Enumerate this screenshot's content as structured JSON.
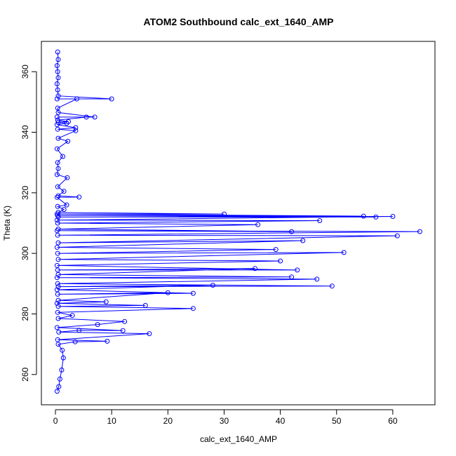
{
  "chart_data": {
    "type": "scatter",
    "title": "ATOM2 Southbound calc_ext_1640_AMP",
    "xlabel": "calc_ext_1640_AMP",
    "ylabel": "Theta (K)",
    "xlim": [
      -2.5,
      67.5
    ],
    "ylim": [
      250,
      370
    ],
    "xticks": [
      0,
      10,
      20,
      30,
      40,
      50,
      60
    ],
    "yticks": [
      260,
      280,
      300,
      320,
      340,
      360
    ],
    "grid": false,
    "legend": "none",
    "mode": "lines+markers",
    "colors": {
      "series": "#0000ff"
    },
    "series": [
      {
        "points": [
          [
            0.3,
            254.5
          ],
          [
            0.6,
            256
          ],
          [
            0.8,
            258.5
          ],
          [
            1.1,
            261.5
          ],
          [
            1.4,
            265.5
          ],
          [
            1.2,
            268
          ],
          [
            0.5,
            270
          ],
          [
            3.5,
            270.8
          ],
          [
            9.2,
            271
          ],
          [
            0.4,
            271.5
          ],
          [
            16.7,
            273.5
          ],
          [
            0.6,
            274
          ],
          [
            4.2,
            274.6
          ],
          [
            12,
            274.5
          ],
          [
            0.3,
            275.5
          ],
          [
            7.5,
            276.5
          ],
          [
            12.3,
            277.5
          ],
          [
            0.5,
            278.5
          ],
          [
            3,
            279.5
          ],
          [
            0.4,
            280.5
          ],
          [
            24.5,
            281.8
          ],
          [
            0.5,
            282.5
          ],
          [
            16,
            282.8
          ],
          [
            0.3,
            283.5
          ],
          [
            9,
            284
          ],
          [
            0.5,
            284.5
          ],
          [
            20,
            287
          ],
          [
            0.4,
            286.5
          ],
          [
            24.5,
            286.8
          ],
          [
            0.3,
            288
          ],
          [
            28,
            289.5
          ],
          [
            0.5,
            289
          ],
          [
            49.2,
            289.2
          ],
          [
            0.4,
            290
          ],
          [
            46.5,
            291.5
          ],
          [
            0.3,
            292
          ],
          [
            42,
            292.2
          ],
          [
            0.5,
            293
          ],
          [
            35.5,
            295
          ],
          [
            0.4,
            294.5
          ],
          [
            43,
            294.5
          ],
          [
            0.3,
            296
          ],
          [
            40,
            297.5
          ],
          [
            0.5,
            298
          ],
          [
            51.3,
            300.3
          ],
          [
            0.4,
            300
          ],
          [
            39.2,
            301.3
          ],
          [
            0.3,
            302
          ],
          [
            44,
            304.2
          ],
          [
            0.5,
            303.5
          ],
          [
            60.8,
            305.8
          ],
          [
            0.4,
            306
          ],
          [
            64.8,
            307.2
          ],
          [
            0.3,
            307.5
          ],
          [
            42,
            307.2
          ],
          [
            0.5,
            308
          ],
          [
            36,
            309.5
          ],
          [
            0.4,
            310
          ],
          [
            47,
            310.8
          ],
          [
            0.3,
            311
          ],
          [
            60,
            312.2
          ],
          [
            0.5,
            312
          ],
          [
            57,
            312
          ],
          [
            0.4,
            312.5
          ],
          [
            54.8,
            312.3
          ],
          [
            0.3,
            313
          ],
          [
            30,
            313
          ],
          [
            0.5,
            313.5
          ],
          [
            1.5,
            314.5
          ],
          [
            0.4,
            315.5
          ],
          [
            2,
            316
          ],
          [
            0.3,
            318.5
          ],
          [
            4.2,
            318.6
          ],
          [
            0.5,
            319
          ],
          [
            1.5,
            320.5
          ],
          [
            0.4,
            322
          ],
          [
            2.1,
            325
          ],
          [
            0.3,
            326
          ],
          [
            0.5,
            328
          ],
          [
            0.4,
            330
          ],
          [
            1.3,
            332
          ],
          [
            0.3,
            334.5
          ],
          [
            2.2,
            337
          ],
          [
            0.5,
            338
          ],
          [
            3.6,
            340.5
          ],
          [
            0.4,
            341
          ],
          [
            3.6,
            341.5
          ],
          [
            0.3,
            342.5
          ],
          [
            2,
            343
          ],
          [
            0.5,
            343.3
          ],
          [
            2.3,
            343.5
          ],
          [
            0.4,
            344
          ],
          [
            5.5,
            345
          ],
          [
            0.3,
            345
          ],
          [
            7,
            345
          ],
          [
            0.5,
            346.5
          ],
          [
            0.4,
            348
          ],
          [
            3.8,
            351
          ],
          [
            0.3,
            351
          ],
          [
            10,
            351
          ],
          [
            0.5,
            352
          ],
          [
            0.4,
            354
          ],
          [
            0.3,
            356
          ],
          [
            0.5,
            358
          ],
          [
            0.4,
            360
          ],
          [
            0.3,
            362
          ],
          [
            0.5,
            364
          ],
          [
            0.4,
            366.5
          ]
        ]
      }
    ]
  }
}
